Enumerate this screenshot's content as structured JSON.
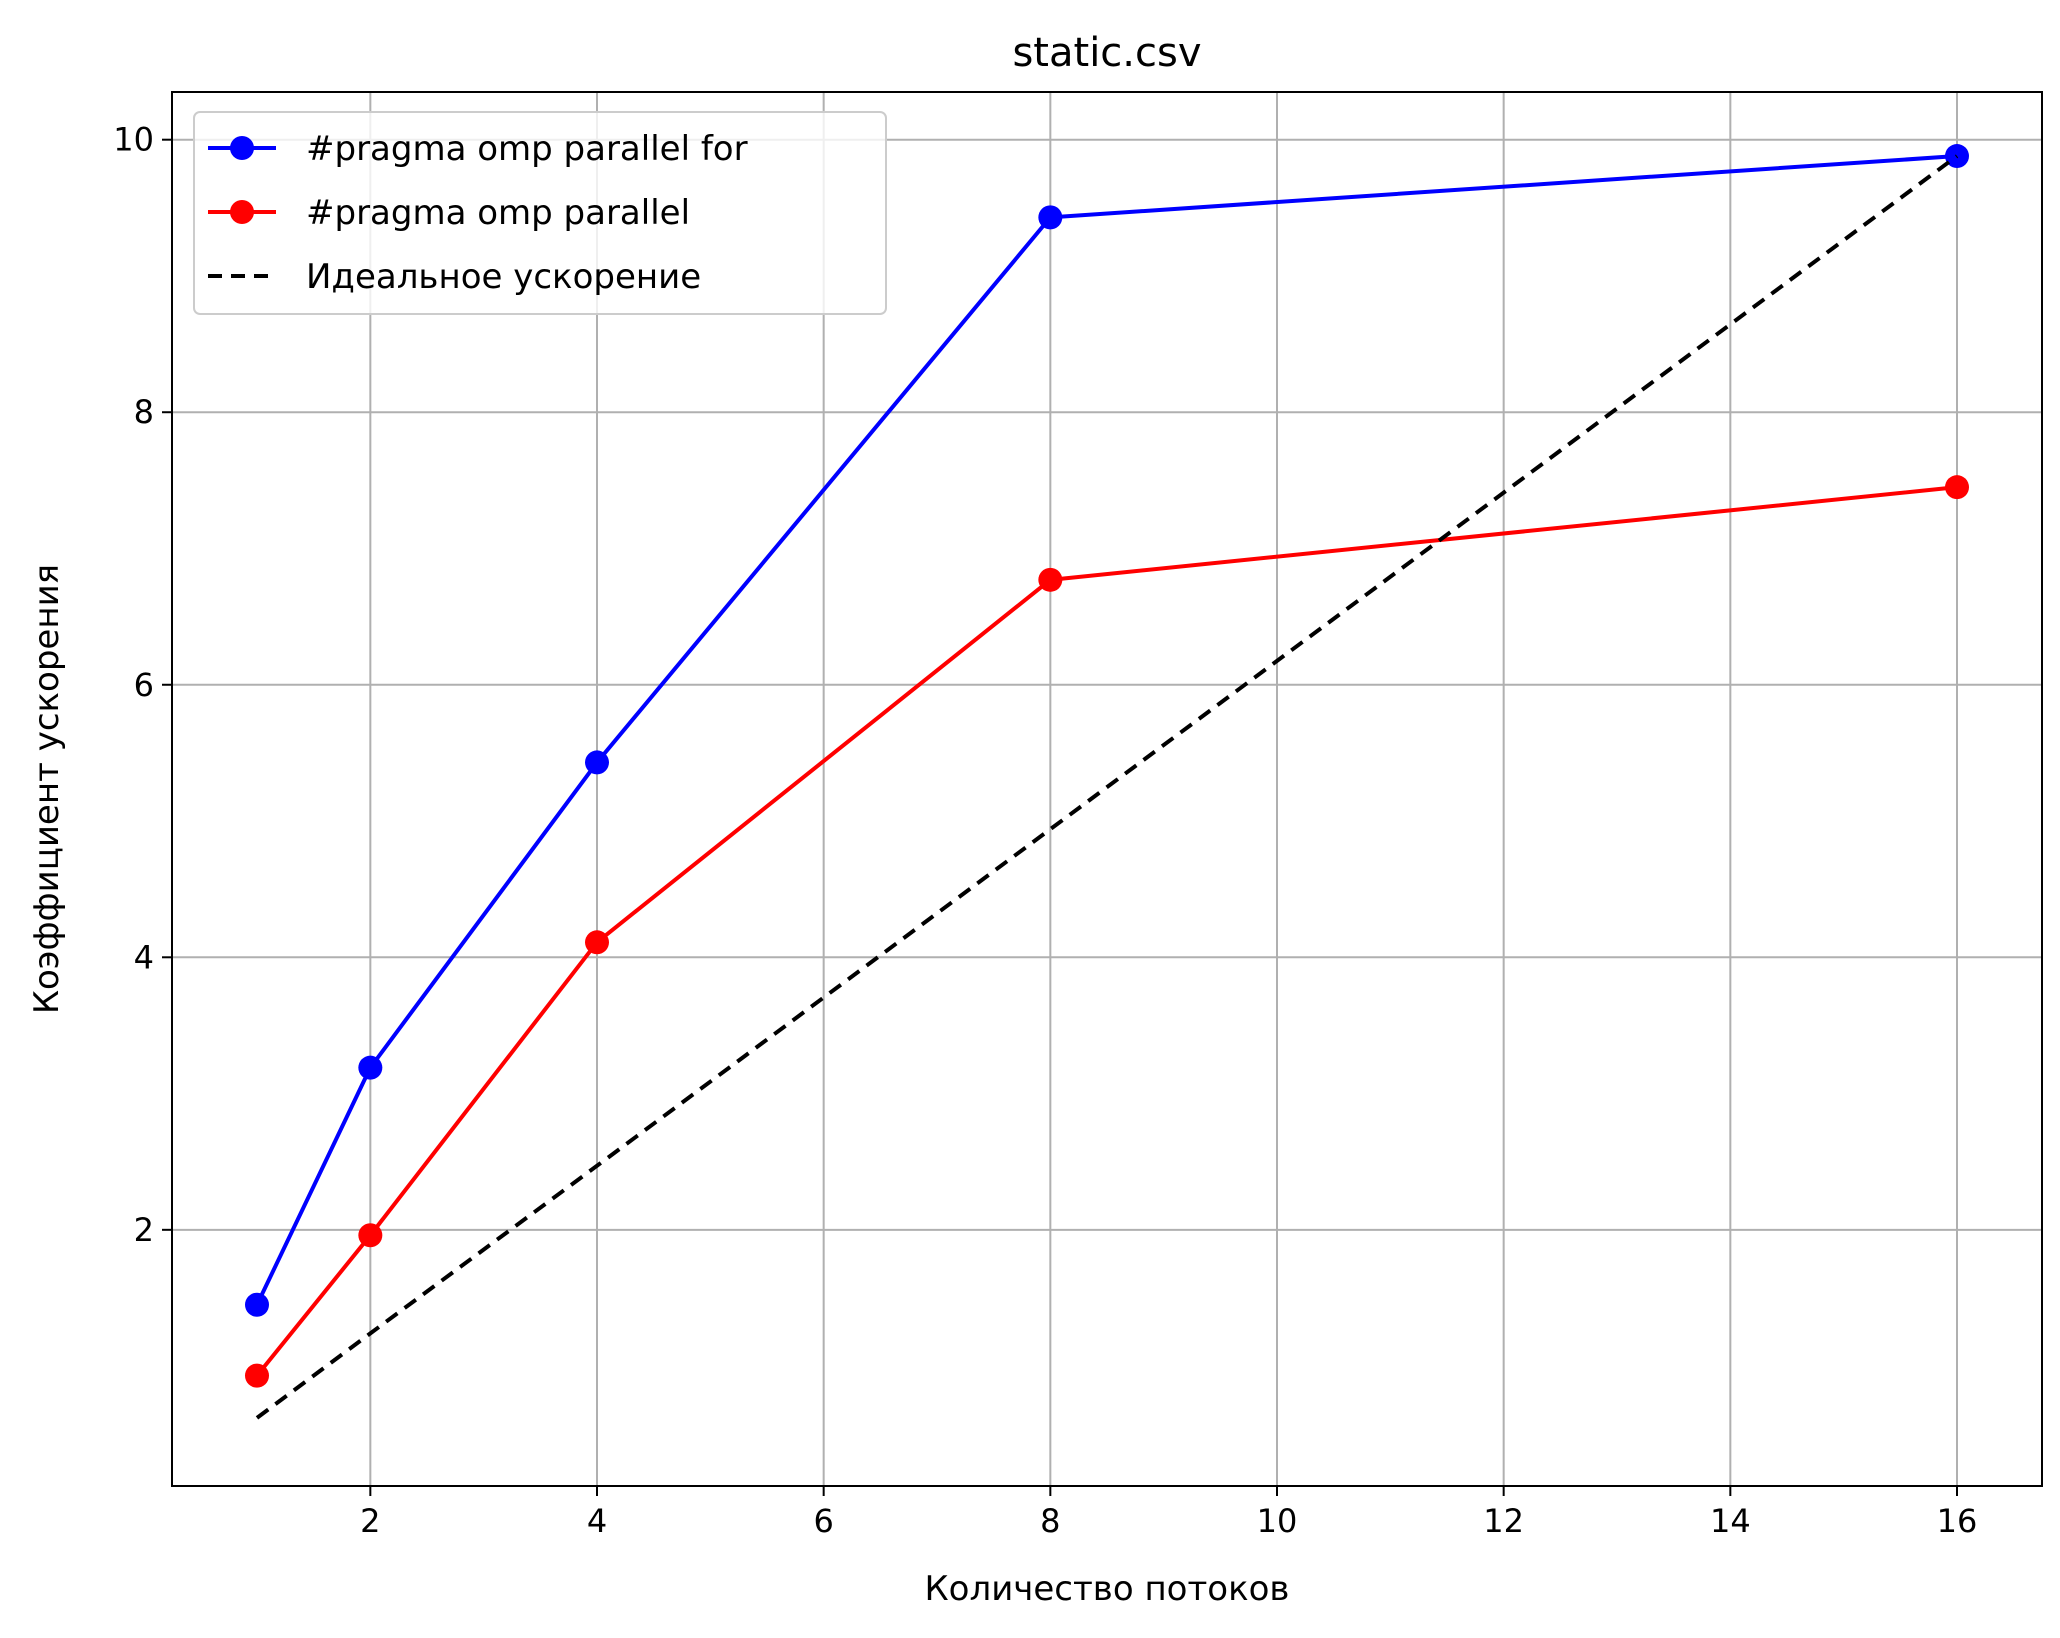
{
  "chart_data": {
    "type": "line",
    "title": "static.csv",
    "xlabel": "Количество потоков",
    "ylabel": "Коэффициент ускорения",
    "xlim": [
      0.25,
      16.75
    ],
    "ylim": [
      0.12,
      10.35
    ],
    "x_ticks": [
      2,
      4,
      6,
      8,
      10,
      12,
      14,
      16
    ],
    "y_ticks": [
      2,
      4,
      6,
      8,
      10
    ],
    "grid": true,
    "legend_position": "top-left",
    "x": [
      1,
      2,
      4,
      8,
      16
    ],
    "series": [
      {
        "name": "#pragma omp parallel for",
        "color": "#0000ff",
        "style": "solid",
        "marker": "circle",
        "values": [
          1.45,
          3.19,
          5.43,
          9.43,
          9.88
        ]
      },
      {
        "name": "#pragma omp parallel",
        "color": "#ff0000",
        "style": "solid",
        "marker": "circle",
        "values": [
          0.93,
          1.96,
          4.11,
          6.77,
          7.45
        ]
      },
      {
        "name": "Идеальное ускорение",
        "color": "#000000",
        "style": "dashed",
        "marker": "none",
        "values": [
          0.62,
          1.24,
          2.47,
          4.94,
          9.88
        ]
      }
    ]
  }
}
